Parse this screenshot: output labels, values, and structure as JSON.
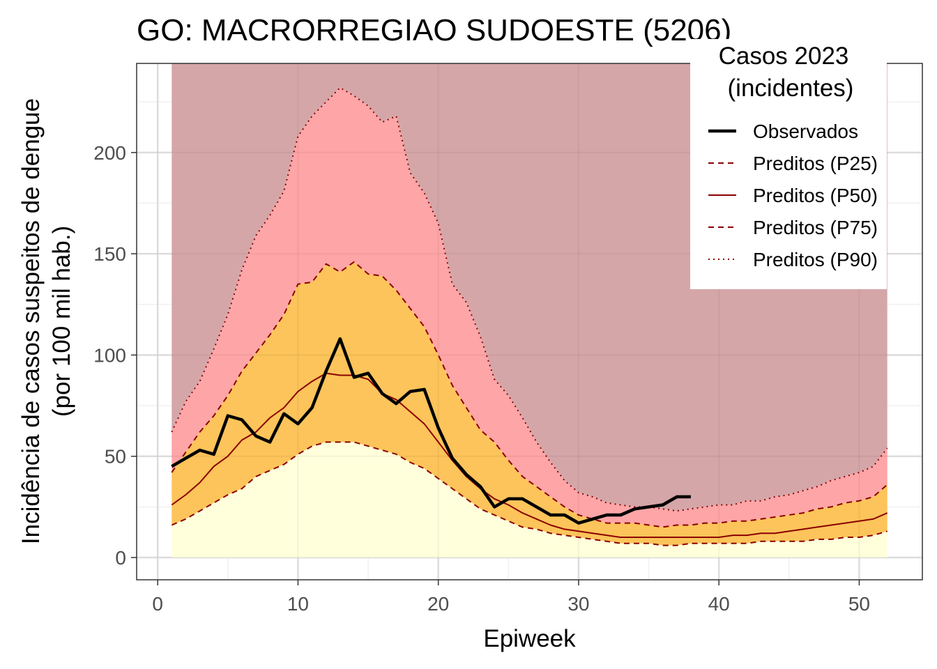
{
  "chart_data": {
    "type": "area",
    "title": "GO: MACRORREGIAO SUDOESTE (5206)",
    "xlabel": "Epiweek",
    "ylabel_line1": "Incidência de casos suspeitos de dengue",
    "ylabel_line2": "(por 100 mil hab.)",
    "xlim": [
      -1.5,
      54.5
    ],
    "ylim": [
      -11,
      244
    ],
    "x_ticks": [
      0,
      10,
      20,
      30,
      40,
      50
    ],
    "y_ticks": [
      0,
      50,
      100,
      150,
      200
    ],
    "grid": true,
    "legend": {
      "position": "top-right",
      "title_line1": "Casos 2023",
      "title_line2": "(incidentes)",
      "entries": [
        "Observados",
        "Preditos (P25)",
        "Preditos (P50)",
        "Preditos (P75)",
        "Preditos (P90)"
      ]
    },
    "colors": {
      "band_low": "#ffffdc",
      "band_mid": "#fcc45a",
      "band_high": "#fea5a7",
      "band_top": "#d5a6a8",
      "predicted_line": "#8b0000",
      "observed_line": "#000000"
    },
    "band_top_value": 244,
    "weeks": [
      1,
      2,
      3,
      4,
      5,
      6,
      7,
      8,
      9,
      10,
      11,
      12,
      13,
      14,
      15,
      16,
      17,
      18,
      19,
      20,
      21,
      22,
      23,
      24,
      25,
      26,
      27,
      28,
      29,
      30,
      31,
      32,
      33,
      34,
      35,
      36,
      37,
      38,
      39,
      40,
      41,
      42,
      43,
      44,
      45,
      46,
      47,
      48,
      49,
      50,
      51,
      52
    ],
    "series": [
      {
        "name": "Preditos (P25)",
        "values": [
          16,
          19,
          23,
          27,
          31,
          34,
          40,
          43,
          46,
          51,
          55,
          57,
          57,
          57,
          55,
          53,
          51,
          47,
          44,
          39,
          34,
          29,
          24,
          21,
          18,
          15,
          14,
          12,
          11,
          10,
          9,
          8,
          7,
          7,
          7,
          6,
          6,
          7,
          7,
          7,
          7,
          7,
          8,
          8,
          8,
          8,
          9,
          9,
          10,
          10,
          11,
          13
        ]
      },
      {
        "name": "Preditos (P50)",
        "values": [
          26,
          31,
          37,
          45,
          50,
          58,
          62,
          69,
          74,
          82,
          87,
          91,
          90,
          90,
          88,
          81,
          78,
          72,
          66,
          57,
          48,
          40,
          34,
          29,
          26,
          22,
          19,
          16,
          14,
          13,
          12,
          11,
          10,
          10,
          10,
          10,
          10,
          10,
          10,
          10,
          11,
          11,
          12,
          12,
          13,
          14,
          15,
          16,
          17,
          18,
          19,
          22
        ]
      },
      {
        "name": "Preditos (P75)",
        "values": [
          42,
          52,
          62,
          70,
          80,
          92,
          101,
          110,
          120,
          135,
          136,
          145,
          141,
          146,
          140,
          139,
          132,
          123,
          114,
          100,
          85,
          74,
          63,
          57,
          48,
          40,
          35,
          30,
          25,
          21,
          19,
          17,
          17,
          17,
          16,
          15,
          16,
          16,
          17,
          17,
          18,
          18,
          19,
          20,
          21,
          22,
          24,
          25,
          27,
          28,
          30,
          36
        ]
      },
      {
        "name": "Preditos (P90)",
        "values": [
          62,
          77,
          87,
          103,
          120,
          142,
          159,
          169,
          181,
          208,
          218,
          225,
          232,
          228,
          223,
          215,
          218,
          190,
          180,
          165,
          135,
          126,
          109,
          88,
          80,
          69,
          57,
          47,
          38,
          32,
          30,
          27,
          26,
          25,
          25,
          24,
          23,
          24,
          25,
          26,
          26,
          28,
          28,
          30,
          31,
          33,
          35,
          38,
          40,
          42,
          45,
          54
        ]
      },
      {
        "name": "Observados",
        "x": [
          1,
          2,
          3,
          4,
          5,
          6,
          7,
          8,
          9,
          10,
          11,
          12,
          13,
          14,
          15,
          16,
          17,
          18,
          19,
          20,
          21,
          22,
          23,
          24,
          25,
          26,
          27,
          28,
          29,
          30,
          31,
          32,
          33,
          34,
          35,
          36,
          37,
          38
        ],
        "values": [
          45,
          49,
          53,
          51,
          70,
          68,
          60,
          57,
          71,
          66,
          74,
          92,
          108,
          89,
          91,
          81,
          76,
          82,
          83,
          64,
          49,
          41,
          35,
          25,
          29,
          29,
          25,
          21,
          21,
          17,
          19,
          21,
          21,
          24,
          25,
          26,
          30,
          30
        ]
      }
    ]
  }
}
